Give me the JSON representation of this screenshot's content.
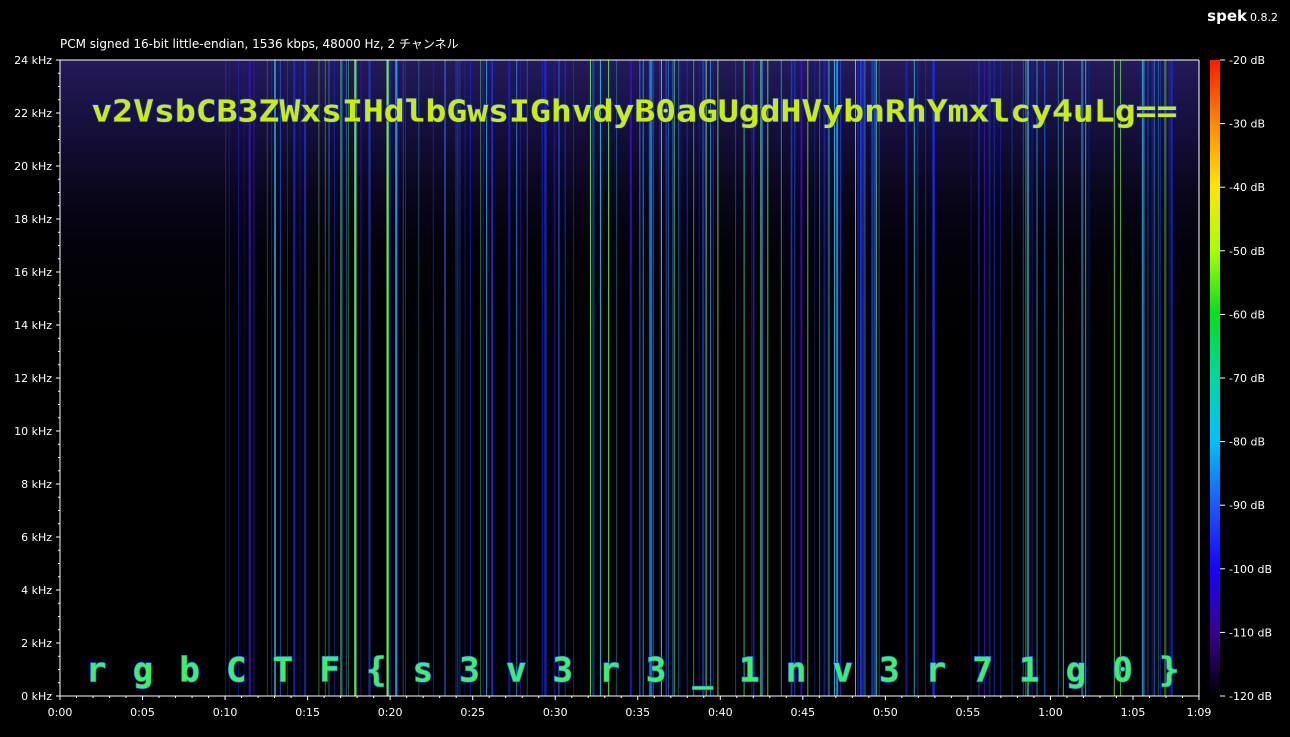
{
  "app": {
    "name": "spek",
    "version": "0.8.2"
  },
  "file_info": "PCM signed 16-bit little-endian, 1536 kbps, 48000 Hz, 2 チャンネル",
  "chart_data": {
    "type": "heatmap",
    "title": "PCM signed 16-bit little-endian, 1536 kbps, 48000 Hz, 2 チャンネル",
    "xlabel": "",
    "ylabel": "",
    "x_ticks": [
      "0:00",
      "0:05",
      "0:10",
      "0:15",
      "0:20",
      "0:25",
      "0:30",
      "0:35",
      "0:40",
      "0:45",
      "0:50",
      "0:55",
      "1:00",
      "1:05",
      "1:09"
    ],
    "x_tick_seconds": [
      0,
      5,
      10,
      15,
      20,
      25,
      30,
      35,
      40,
      45,
      50,
      55,
      60,
      65,
      69
    ],
    "xlim_seconds": [
      0,
      69
    ],
    "y_ticks": [
      "0 kHz",
      "2 kHz",
      "4 kHz",
      "6 kHz",
      "8 kHz",
      "10 kHz",
      "12 kHz",
      "14 kHz",
      "16 kHz",
      "18 kHz",
      "20 kHz",
      "22 kHz",
      "24 kHz"
    ],
    "ylim_khz": [
      0,
      24
    ],
    "colorbar_ticks": [
      "-20 dB",
      "-30 dB",
      "-40 dB",
      "-50 dB",
      "-60 dB",
      "-70 dB",
      "-80 dB",
      "-90 dB",
      "-100 dB",
      "-110 dB",
      "-120 dB"
    ],
    "colorbar_range_db": [
      -120,
      -20
    ],
    "colorbar_colors": [
      "#ff1a00",
      "#ff8a00",
      "#ffe600",
      "#a8ff00",
      "#00e020",
      "#00d8a0",
      "#00c0ff",
      "#1a5aff",
      "#1a00ff",
      "#3a0090",
      "#000000"
    ],
    "embedded_text": [
      {
        "text": "v2VsbCB3ZWxsIHdlbGwsIGhvdyB0aGUgdHVybnRhYmxlcy4uLg==",
        "y_khz": 22.1
      },
      {
        "text": "rgbCTF{s3v3r3_1nv3r71g0}",
        "y_khz": 1.0
      }
    ]
  }
}
